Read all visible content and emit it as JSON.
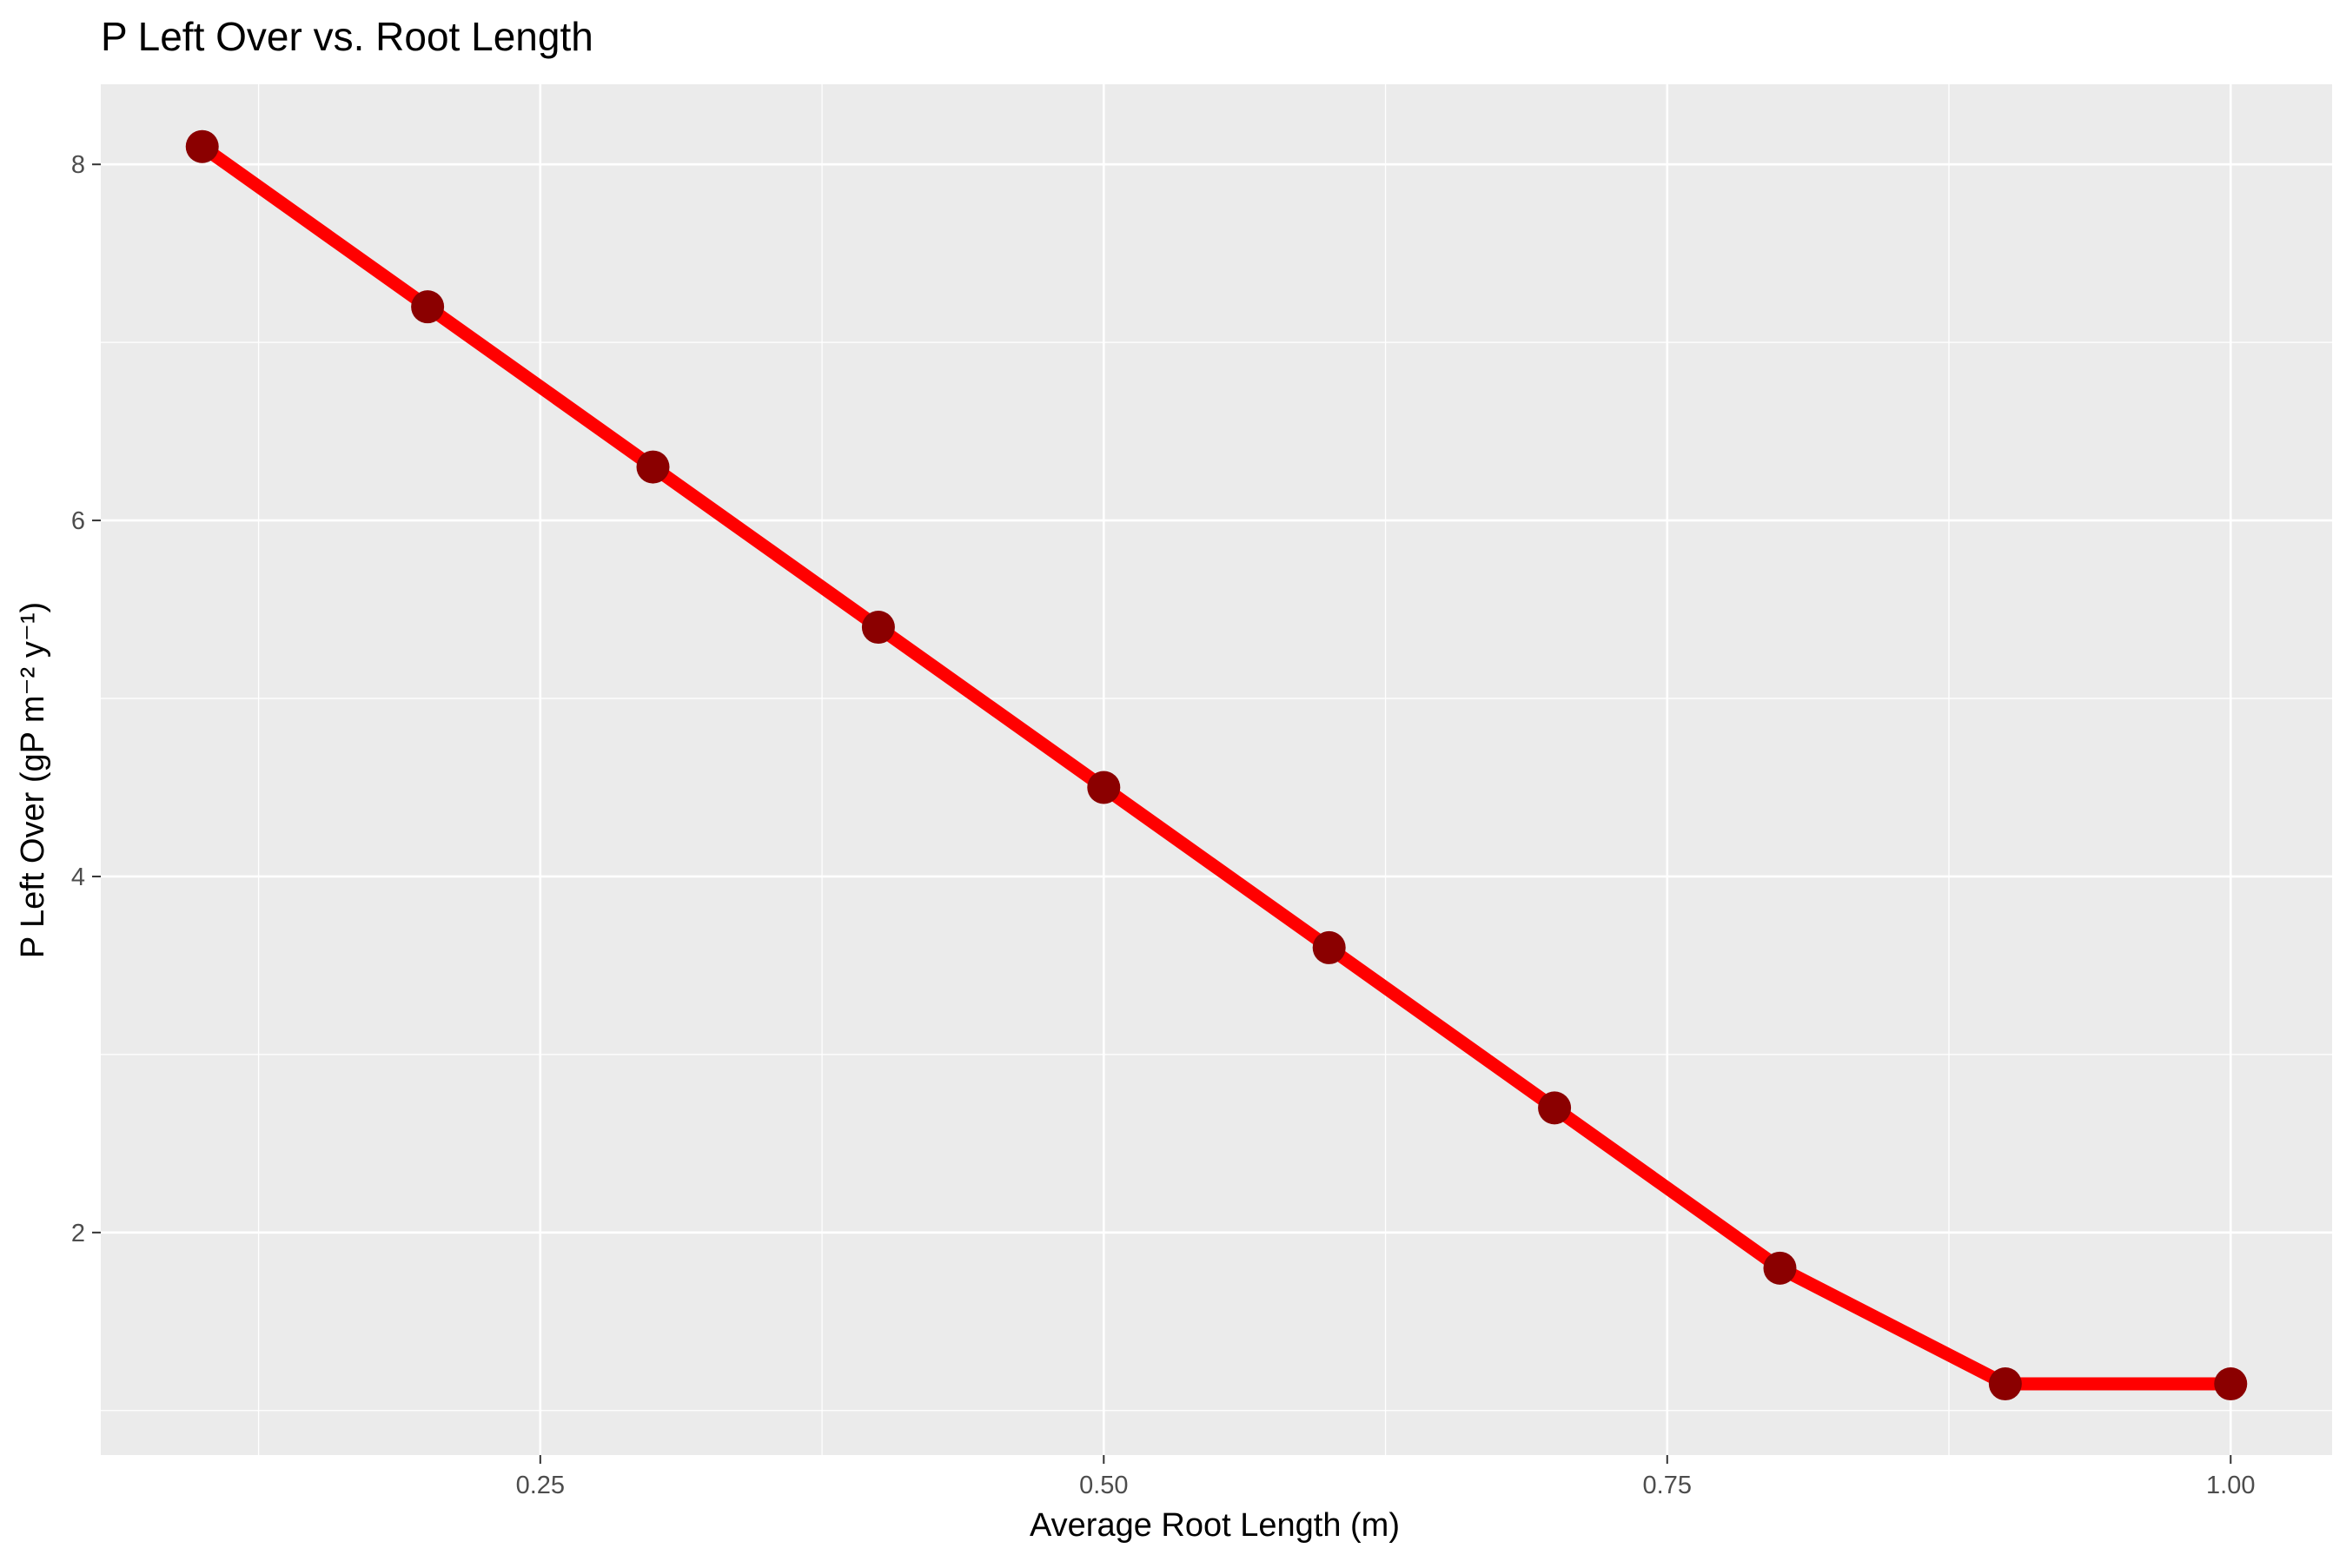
{
  "chart_data": {
    "type": "line",
    "title": "P Left Over vs. Root Length",
    "xlabel": "Average Root Length (m)",
    "ylabel": "P Left Over (gP m⁻² y⁻¹)",
    "xlim": [
      0.055,
      1.045
    ],
    "ylim": [
      0.75,
      8.45
    ],
    "x_major_ticks": [
      0.25,
      0.5,
      0.75,
      1.0
    ],
    "x_tick_labels": [
      "0.25",
      "0.50",
      "0.75",
      "1.00"
    ],
    "x_minor_ticks": [
      0.125,
      0.375,
      0.625,
      0.875
    ],
    "y_major_ticks": [
      2,
      4,
      6,
      8
    ],
    "y_tick_labels": [
      "2",
      "4",
      "6",
      "8"
    ],
    "y_minor_ticks": [
      1,
      3,
      5,
      7
    ],
    "grid": true,
    "series": [
      {
        "x": [
          0.1,
          0.2,
          0.3,
          0.4,
          0.5,
          0.6,
          0.7,
          0.8,
          0.9,
          1.0
        ],
        "values": [
          8.1,
          7.2,
          6.3,
          5.4,
          4.5,
          3.6,
          2.7,
          1.8,
          1.15,
          1.15
        ],
        "line_color": "#ff0000",
        "marker_color": "#8b0000"
      }
    ],
    "panel_color": "#ebebeb",
    "grid_color": "#ffffff",
    "tick_color": "#333333"
  }
}
